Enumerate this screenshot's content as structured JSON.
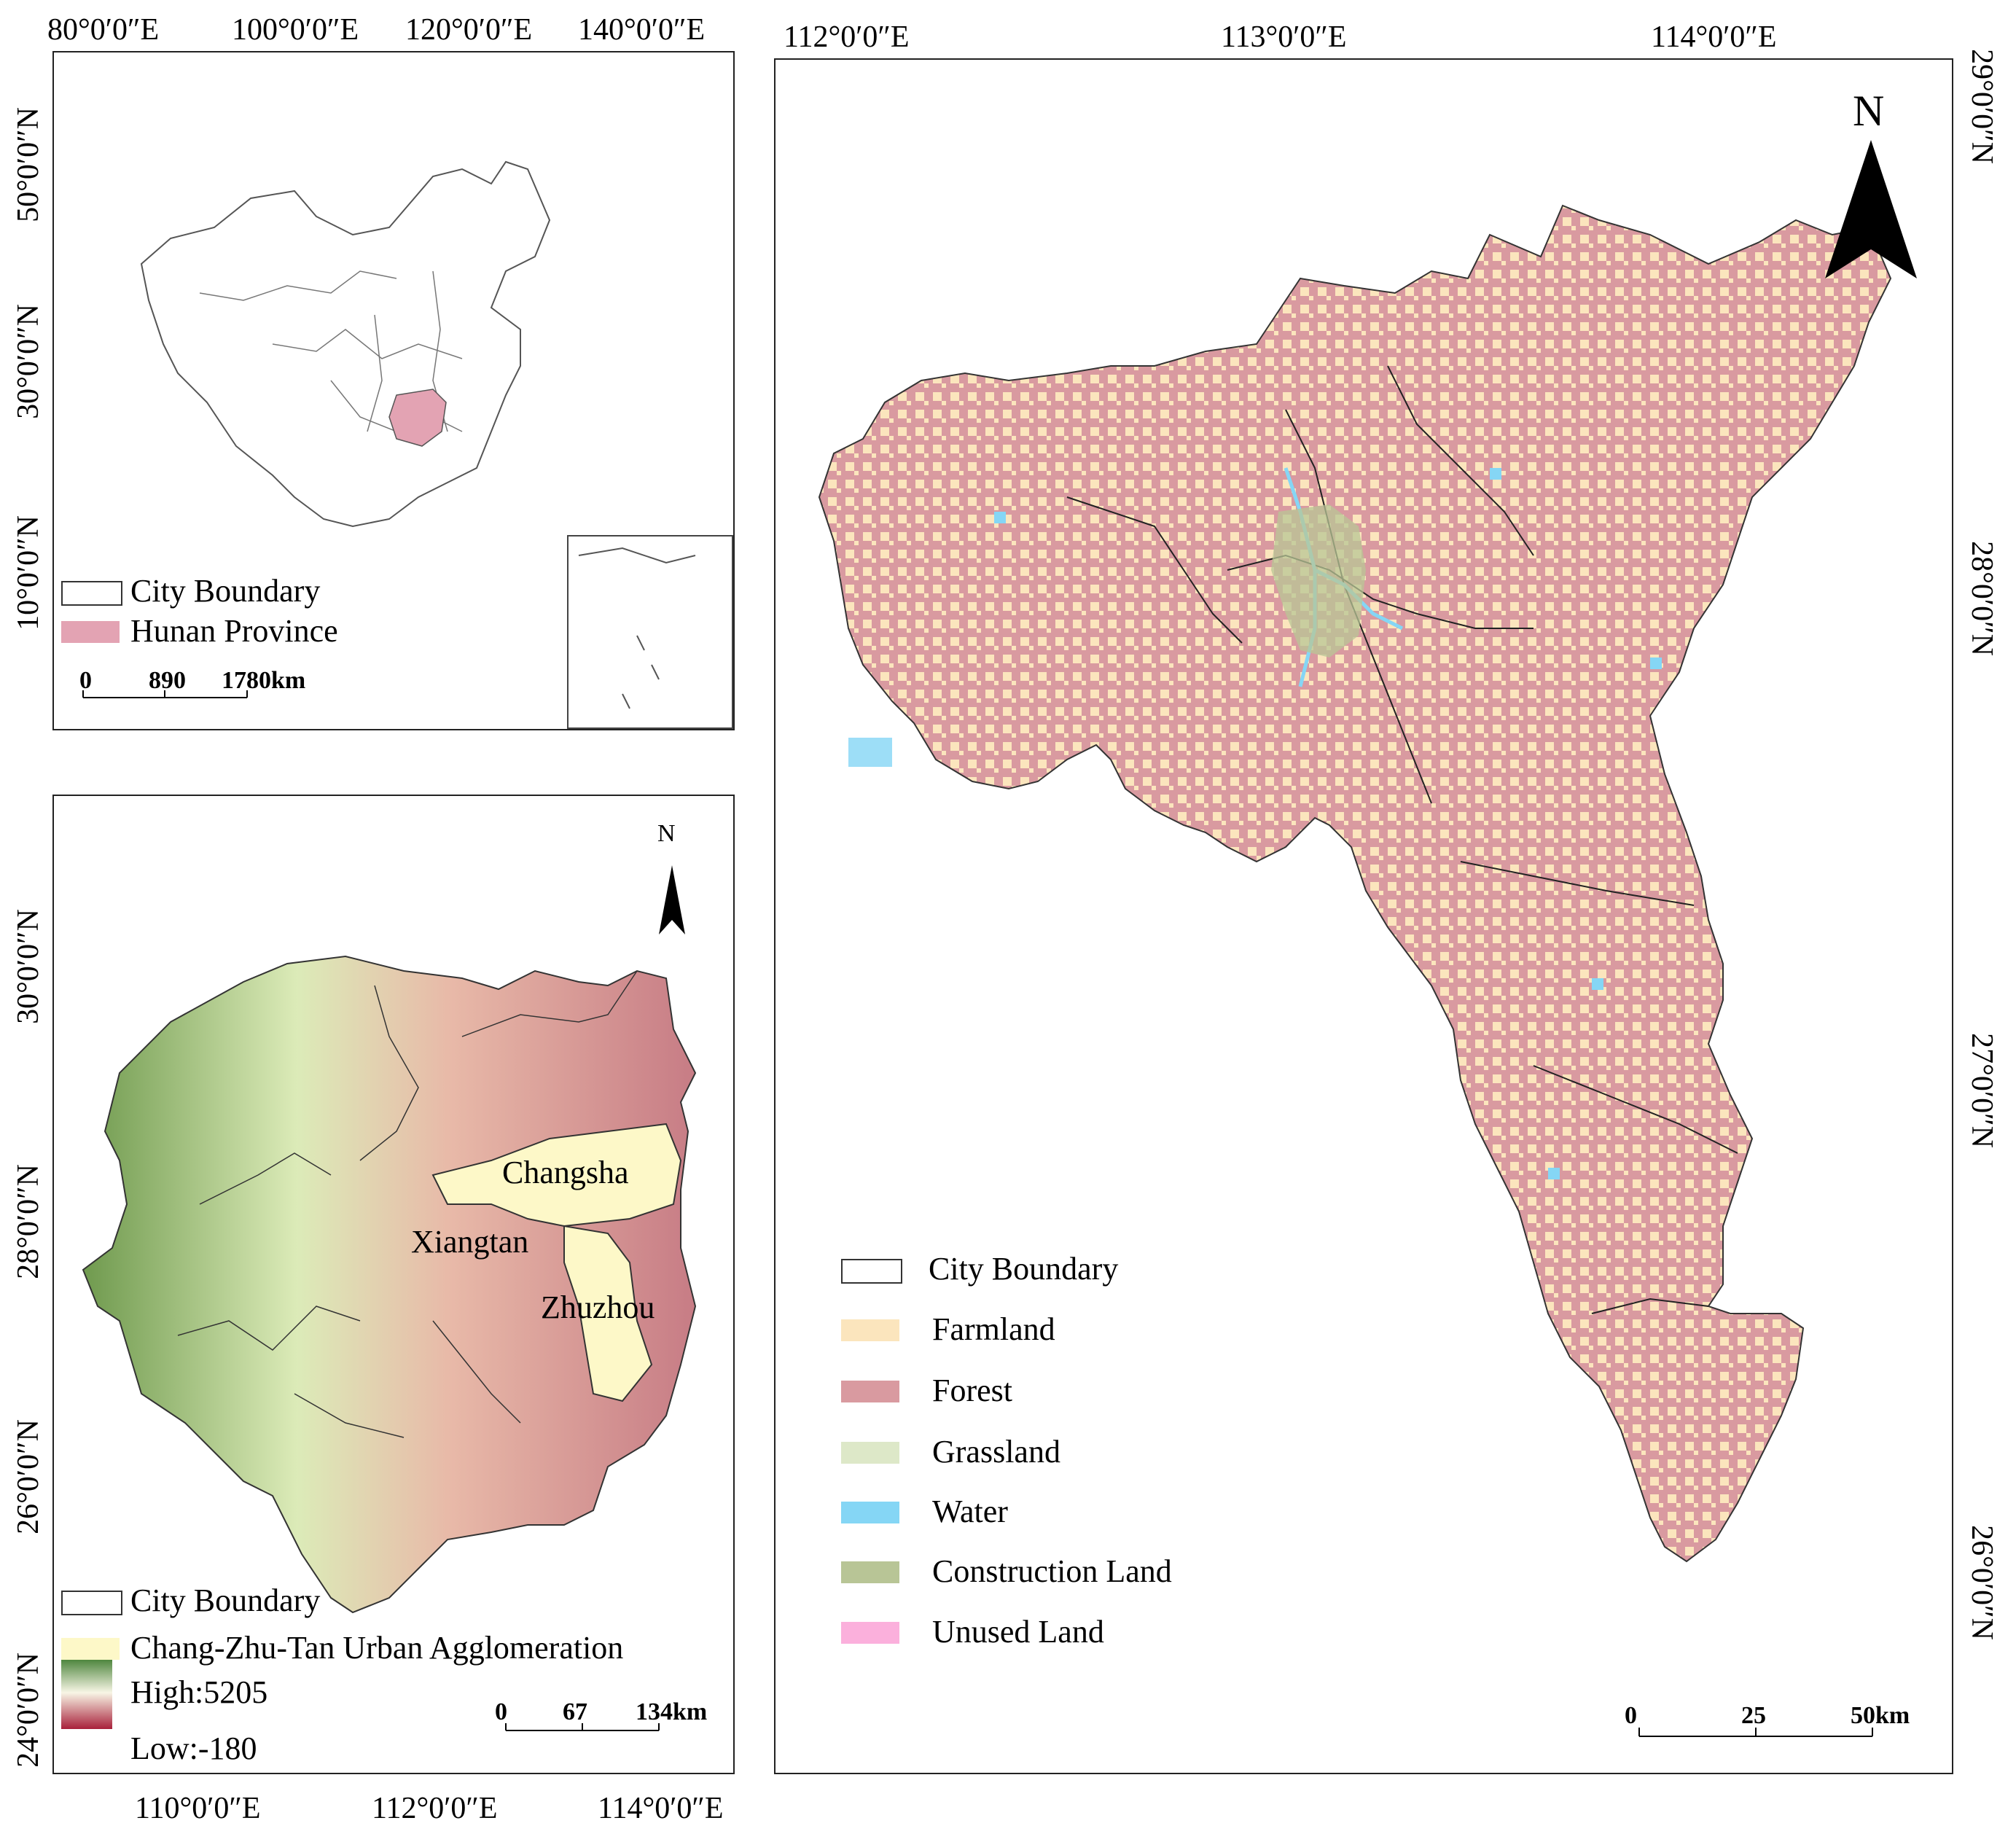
{
  "top_left_map": {
    "lon_ticks": [
      "80°0′0″E",
      "100°0′0″E",
      "120°0′0″E",
      "140°0′0″E"
    ],
    "lat_ticks": [
      "50°0′0″N",
      "30°0′0″N",
      "10°0′0″N"
    ],
    "legend": [
      {
        "label": "City Boundary",
        "color": "#ffffff"
      },
      {
        "label": "Hunan Province",
        "color": "#e3a3b3"
      }
    ],
    "scale": [
      "0",
      "890",
      "1780km"
    ]
  },
  "bottom_left_map": {
    "lon_ticks": [
      "110°0′0″E",
      "112°0′0″E",
      "114°0′0″E"
    ],
    "lat_ticks": [
      "30°0′0″N",
      "28°0′0″N",
      "26°0′0″N",
      "24°0′0″N"
    ],
    "north_label": "N",
    "city_labels": [
      "Changsha",
      "Xiangtan",
      "Zhuzhou"
    ],
    "legend": [
      {
        "label": "City Boundary",
        "color": "#ffffff"
      },
      {
        "label": "Chang-Zhu-Tan Urban Agglomeration",
        "color": "#fdf8c8"
      }
    ],
    "elevation_high": "High:5205",
    "elevation_low": "Low:-180",
    "scale": [
      "0",
      "67",
      "134km"
    ]
  },
  "right_map": {
    "lon_ticks": [
      "112°0′0″E",
      "113°0′0″E",
      "114°0′0″E"
    ],
    "lat_ticks": [
      "29°0′0″N",
      "28°0′0″N",
      "27°0′0″N",
      "26°0′0″N"
    ],
    "north_label": "N",
    "legend": [
      {
        "label": "City Boundary",
        "color": "#ffffff"
      },
      {
        "label": "Farmland",
        "color": "#fbe5bd"
      },
      {
        "label": "Forest",
        "color": "#d99aa0"
      },
      {
        "label": "Grassland",
        "color": "#dde8c8"
      },
      {
        "label": "Water",
        "color": "#85d6f5"
      },
      {
        "label": "Construction Land",
        "color": "#b8c596"
      },
      {
        "label": "Unused Land",
        "color": "#fbb0dc"
      }
    ],
    "scale": [
      "0",
      "25",
      "50km"
    ]
  }
}
